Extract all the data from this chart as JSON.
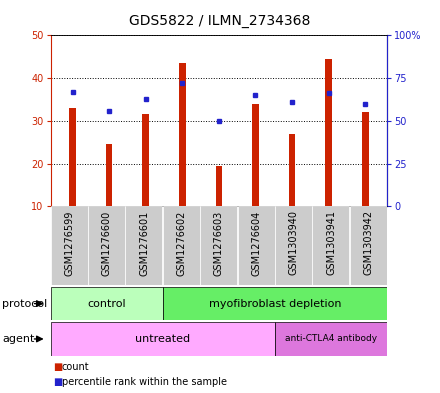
{
  "title": "GDS5822 / ILMN_2734368",
  "samples": [
    "GSM1276599",
    "GSM1276600",
    "GSM1276601",
    "GSM1276602",
    "GSM1276603",
    "GSM1276604",
    "GSM1303940",
    "GSM1303941",
    "GSM1303942"
  ],
  "counts": [
    33,
    24.5,
    31.5,
    43.5,
    19.5,
    34,
    27,
    44.5,
    32
  ],
  "percentiles": [
    67,
    56,
    63,
    72,
    50,
    65,
    61,
    66,
    60
  ],
  "ylim_left": [
    10,
    50
  ],
  "ylim_right": [
    0,
    100
  ],
  "yticks_left": [
    10,
    20,
    30,
    40,
    50
  ],
  "yticks_right": [
    0,
    25,
    50,
    75,
    100
  ],
  "yticklabels_right": [
    "0",
    "25",
    "50",
    "75",
    "100%"
  ],
  "bar_color": "#cc2200",
  "dot_color": "#2222cc",
  "control_color": "#bbffbb",
  "myofib_color": "#66ee66",
  "untreated_color": "#ffaaff",
  "anti_color": "#dd77dd",
  "sample_bg_color": "#cccccc",
  "plot_bg_color": "#ffffff",
  "protocol_label": "protocol",
  "agent_label": "agent",
  "legend_count_label": "count",
  "legend_pct_label": "percentile rank within the sample",
  "title_fontsize": 10,
  "tick_fontsize": 7,
  "label_fontsize": 8,
  "row_label_fontsize": 8,
  "annot_fontsize": 8
}
